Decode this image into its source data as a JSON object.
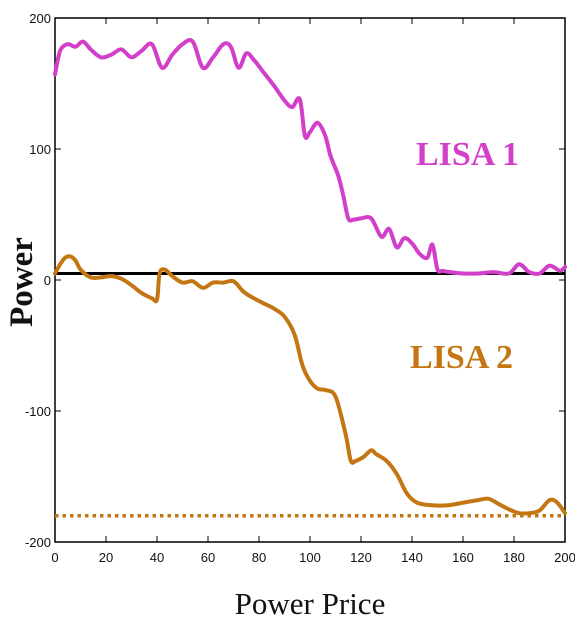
{
  "chart_data": {
    "type": "line",
    "xlabel": "Power Price",
    "ylabel": "Power",
    "xlim": [
      0,
      200
    ],
    "ylim": [
      -200,
      200
    ],
    "xticks": [
      0,
      20,
      40,
      60,
      80,
      100,
      120,
      140,
      160,
      180,
      200
    ],
    "yticks": [
      200,
      100,
      0,
      -100,
      -200
    ],
    "grid": false,
    "colors": {
      "lisa1": "#d23fc8",
      "lisa2": "#c47613",
      "zero_line": "#000000"
    },
    "series": [
      {
        "name": "LISA 1",
        "label_position": "right, above zero line",
        "x": [
          0,
          2,
          5,
          8,
          11,
          14,
          18,
          22,
          26,
          30,
          34,
          38,
          42,
          46,
          50,
          54,
          58,
          62,
          66,
          69,
          72,
          75,
          78,
          82,
          86,
          90,
          93,
          96,
          98,
          100,
          103,
          106,
          108,
          111,
          113,
          115,
          117,
          120,
          124,
          128,
          131,
          134,
          137,
          140,
          143,
          146,
          148,
          150,
          152,
          155,
          160,
          166,
          172,
          178,
          182,
          186,
          190,
          194,
          198,
          200
        ],
        "values": [
          157,
          175,
          180,
          178,
          182,
          176,
          170,
          172,
          176,
          170,
          175,
          180,
          162,
          172,
          180,
          182,
          162,
          170,
          180,
          178,
          162,
          173,
          168,
          158,
          148,
          137,
          132,
          138,
          110,
          113,
          120,
          110,
          95,
          80,
          65,
          47,
          46,
          47,
          47,
          33,
          39,
          25,
          32,
          28,
          20,
          17,
          27,
          8,
          7,
          6,
          5,
          5,
          6,
          5,
          12,
          6,
          5,
          11,
          7,
          10
        ]
      },
      {
        "name": "LISA 2",
        "label_position": "right, below zero line",
        "x": [
          0,
          2,
          4,
          6,
          8,
          10,
          14,
          18,
          22,
          26,
          30,
          34,
          38,
          40,
          41,
          43,
          46,
          50,
          54,
          58,
          62,
          66,
          70,
          74,
          78,
          82,
          86,
          90,
          94,
          97,
          100,
          103,
          106,
          110,
          114,
          116,
          118,
          121,
          124,
          126,
          130,
          134,
          138,
          142,
          148,
          154,
          160,
          166,
          170,
          174,
          178,
          182,
          186,
          190,
          194,
          197,
          200
        ],
        "values": [
          5,
          12,
          17,
          18,
          15,
          8,
          2,
          2,
          3,
          1,
          -4,
          -10,
          -14,
          -15,
          5,
          8,
          3,
          -2,
          -1,
          -6,
          -2,
          -2,
          -1,
          -9,
          -14,
          -18,
          -22,
          -28,
          -42,
          -65,
          -77,
          -83,
          -84,
          -89,
          -118,
          -138,
          -138,
          -135,
          -130,
          -133,
          -138,
          -148,
          -163,
          -170,
          -172,
          -172,
          -170,
          -168,
          -167,
          -171,
          -175,
          -178,
          -178,
          -176,
          -168,
          -170,
          -178
        ]
      }
    ],
    "reference_lines": [
      {
        "kind": "solid horizontal",
        "y": 5,
        "color": "#000000"
      },
      {
        "kind": "dotted horizontal",
        "y": -180,
        "color": "#c47613"
      }
    ]
  }
}
